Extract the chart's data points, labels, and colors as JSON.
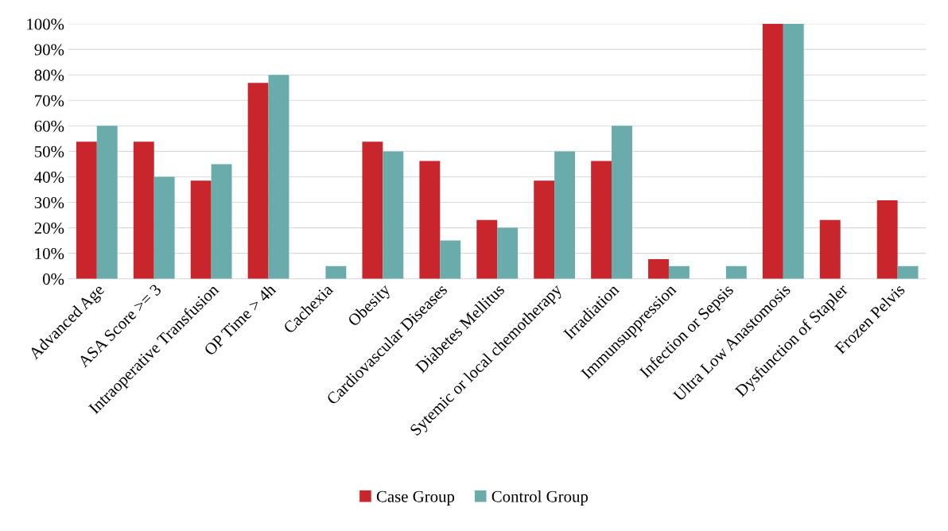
{
  "chart_data": {
    "type": "bar",
    "categories": [
      "Advanced Age",
      "ASA Score >= 3",
      "Intraoperative Transfusion",
      "OP Time > 4h",
      "Cachexia",
      "Obesity",
      "Cardiovascular Diseases",
      "Diabetes Mellitus",
      "Sytemic or local chemotherapy",
      "Irradiation",
      "Immunsuppression",
      "Infection or Sepsis",
      "Ultra Low Anastomosis",
      "Dysfunction of Stapler",
      "Frozen Pelvis"
    ],
    "series": [
      {
        "name": "Case Group",
        "color": "#c8262c",
        "values": [
          53.8,
          53.8,
          38.5,
          76.9,
          0,
          53.8,
          46.2,
          23.1,
          38.5,
          46.2,
          7.7,
          0,
          100,
          23.1,
          30.8
        ]
      },
      {
        "name": "Control Group",
        "color": "#6aabac",
        "values": [
          60,
          40,
          45,
          80,
          5,
          50,
          15,
          20,
          50,
          60,
          5,
          5,
          100,
          0,
          5
        ]
      }
    ],
    "ylim": [
      0,
      100
    ],
    "yticks": [
      {
        "value": 0,
        "label": "0%"
      },
      {
        "value": 10,
        "label": "10%"
      },
      {
        "value": 20,
        "label": "20%"
      },
      {
        "value": 30,
        "label": "30%"
      },
      {
        "value": 40,
        "label": "40%"
      },
      {
        "value": 50,
        "label": "50%"
      },
      {
        "value": 60,
        "label": "60%"
      },
      {
        "value": 70,
        "label": "70%"
      },
      {
        "value": 80,
        "label": "80%"
      },
      {
        "value": 90,
        "label": "90%"
      },
      {
        "value": 100,
        "label": "100%"
      }
    ],
    "grid": "y",
    "legend": "bottom"
  }
}
